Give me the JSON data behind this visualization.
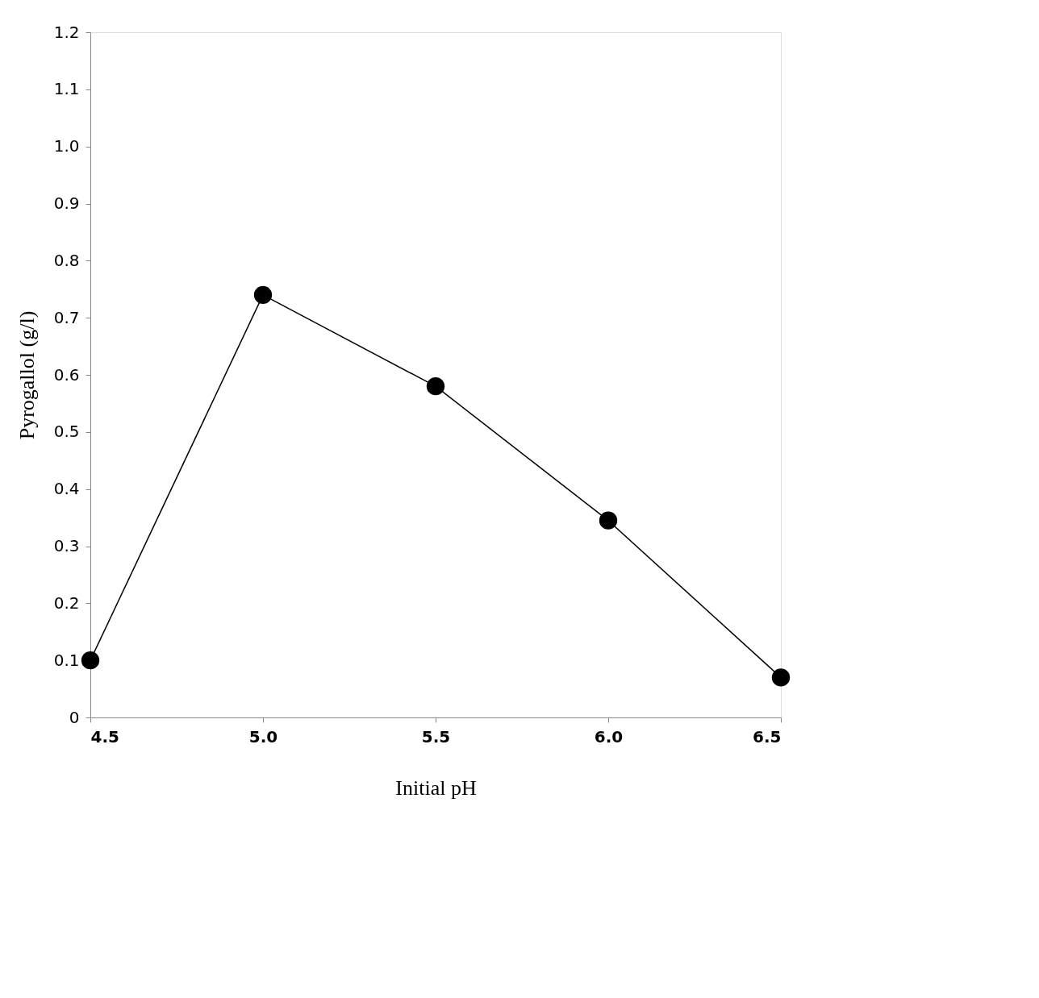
{
  "chart_data": {
    "type": "line",
    "xlabel": "Initial pH",
    "ylabel": "Pyrogallol (g/l)",
    "x": [
      4.5,
      5.0,
      5.5,
      6.0,
      6.5
    ],
    "series": [
      {
        "color": "#000000",
        "values": [
          0.1,
          0.74,
          0.58,
          0.345,
          0.07
        ]
      }
    ],
    "xlim": [
      4.5,
      6.5
    ],
    "xticks": [
      {
        "value": 4.5,
        "label": "4.5"
      },
      {
        "value": 5,
        "label": "5.0"
      },
      {
        "value": 5.5,
        "label": "5.5"
      },
      {
        "value": 6,
        "label": "6.0"
      },
      {
        "value": 6.5,
        "label": "6.5"
      }
    ],
    "ylim": [
      0,
      1.2
    ],
    "yticks": [
      0,
      0.1,
      0.2,
      0.3,
      0.4,
      0.5,
      0.6,
      0.7,
      0.8,
      0.9,
      {
        "value": 1.0,
        "label": "1.0"
      },
      1.1,
      1.2
    ],
    "grid": false,
    "legend": false,
    "marker": "circle",
    "line_style": "solid"
  }
}
